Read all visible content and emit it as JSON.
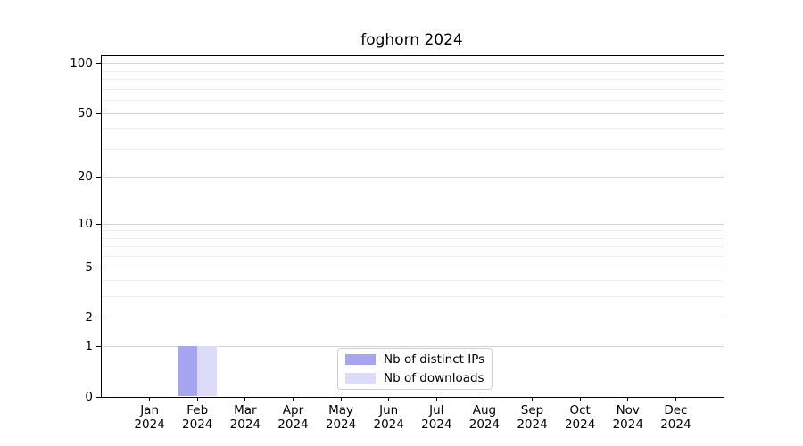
{
  "chart_data": {
    "type": "bar",
    "title": "foghorn 2024",
    "categories": [
      "Jan 2024",
      "Feb 2024",
      "Mar 2024",
      "Apr 2024",
      "May 2024",
      "Jun 2024",
      "Jul 2024",
      "Aug 2024",
      "Sep 2024",
      "Oct 2024",
      "Nov 2024",
      "Dec 2024"
    ],
    "series": [
      {
        "name": "Nb of distinct IPs",
        "color": "#a5a5f0",
        "values": [
          0,
          1,
          0,
          0,
          0,
          0,
          0,
          0,
          0,
          0,
          0,
          0
        ]
      },
      {
        "name": "Nb of downloads",
        "color": "#dcdcf8",
        "values": [
          0,
          1,
          0,
          0,
          0,
          0,
          0,
          0,
          0,
          0,
          0,
          0
        ]
      }
    ],
    "xlabel": "",
    "ylabel": "",
    "yscale": "log1p",
    "yticks": [
      0,
      1,
      2,
      5,
      10,
      20,
      50,
      100
    ],
    "minor_yticks": [
      3,
      4,
      6,
      7,
      8,
      9,
      30,
      40,
      60,
      70,
      80,
      90
    ],
    "ylim": [
      0,
      111
    ],
    "grid": true,
    "legend_position": "lower center inside"
  }
}
